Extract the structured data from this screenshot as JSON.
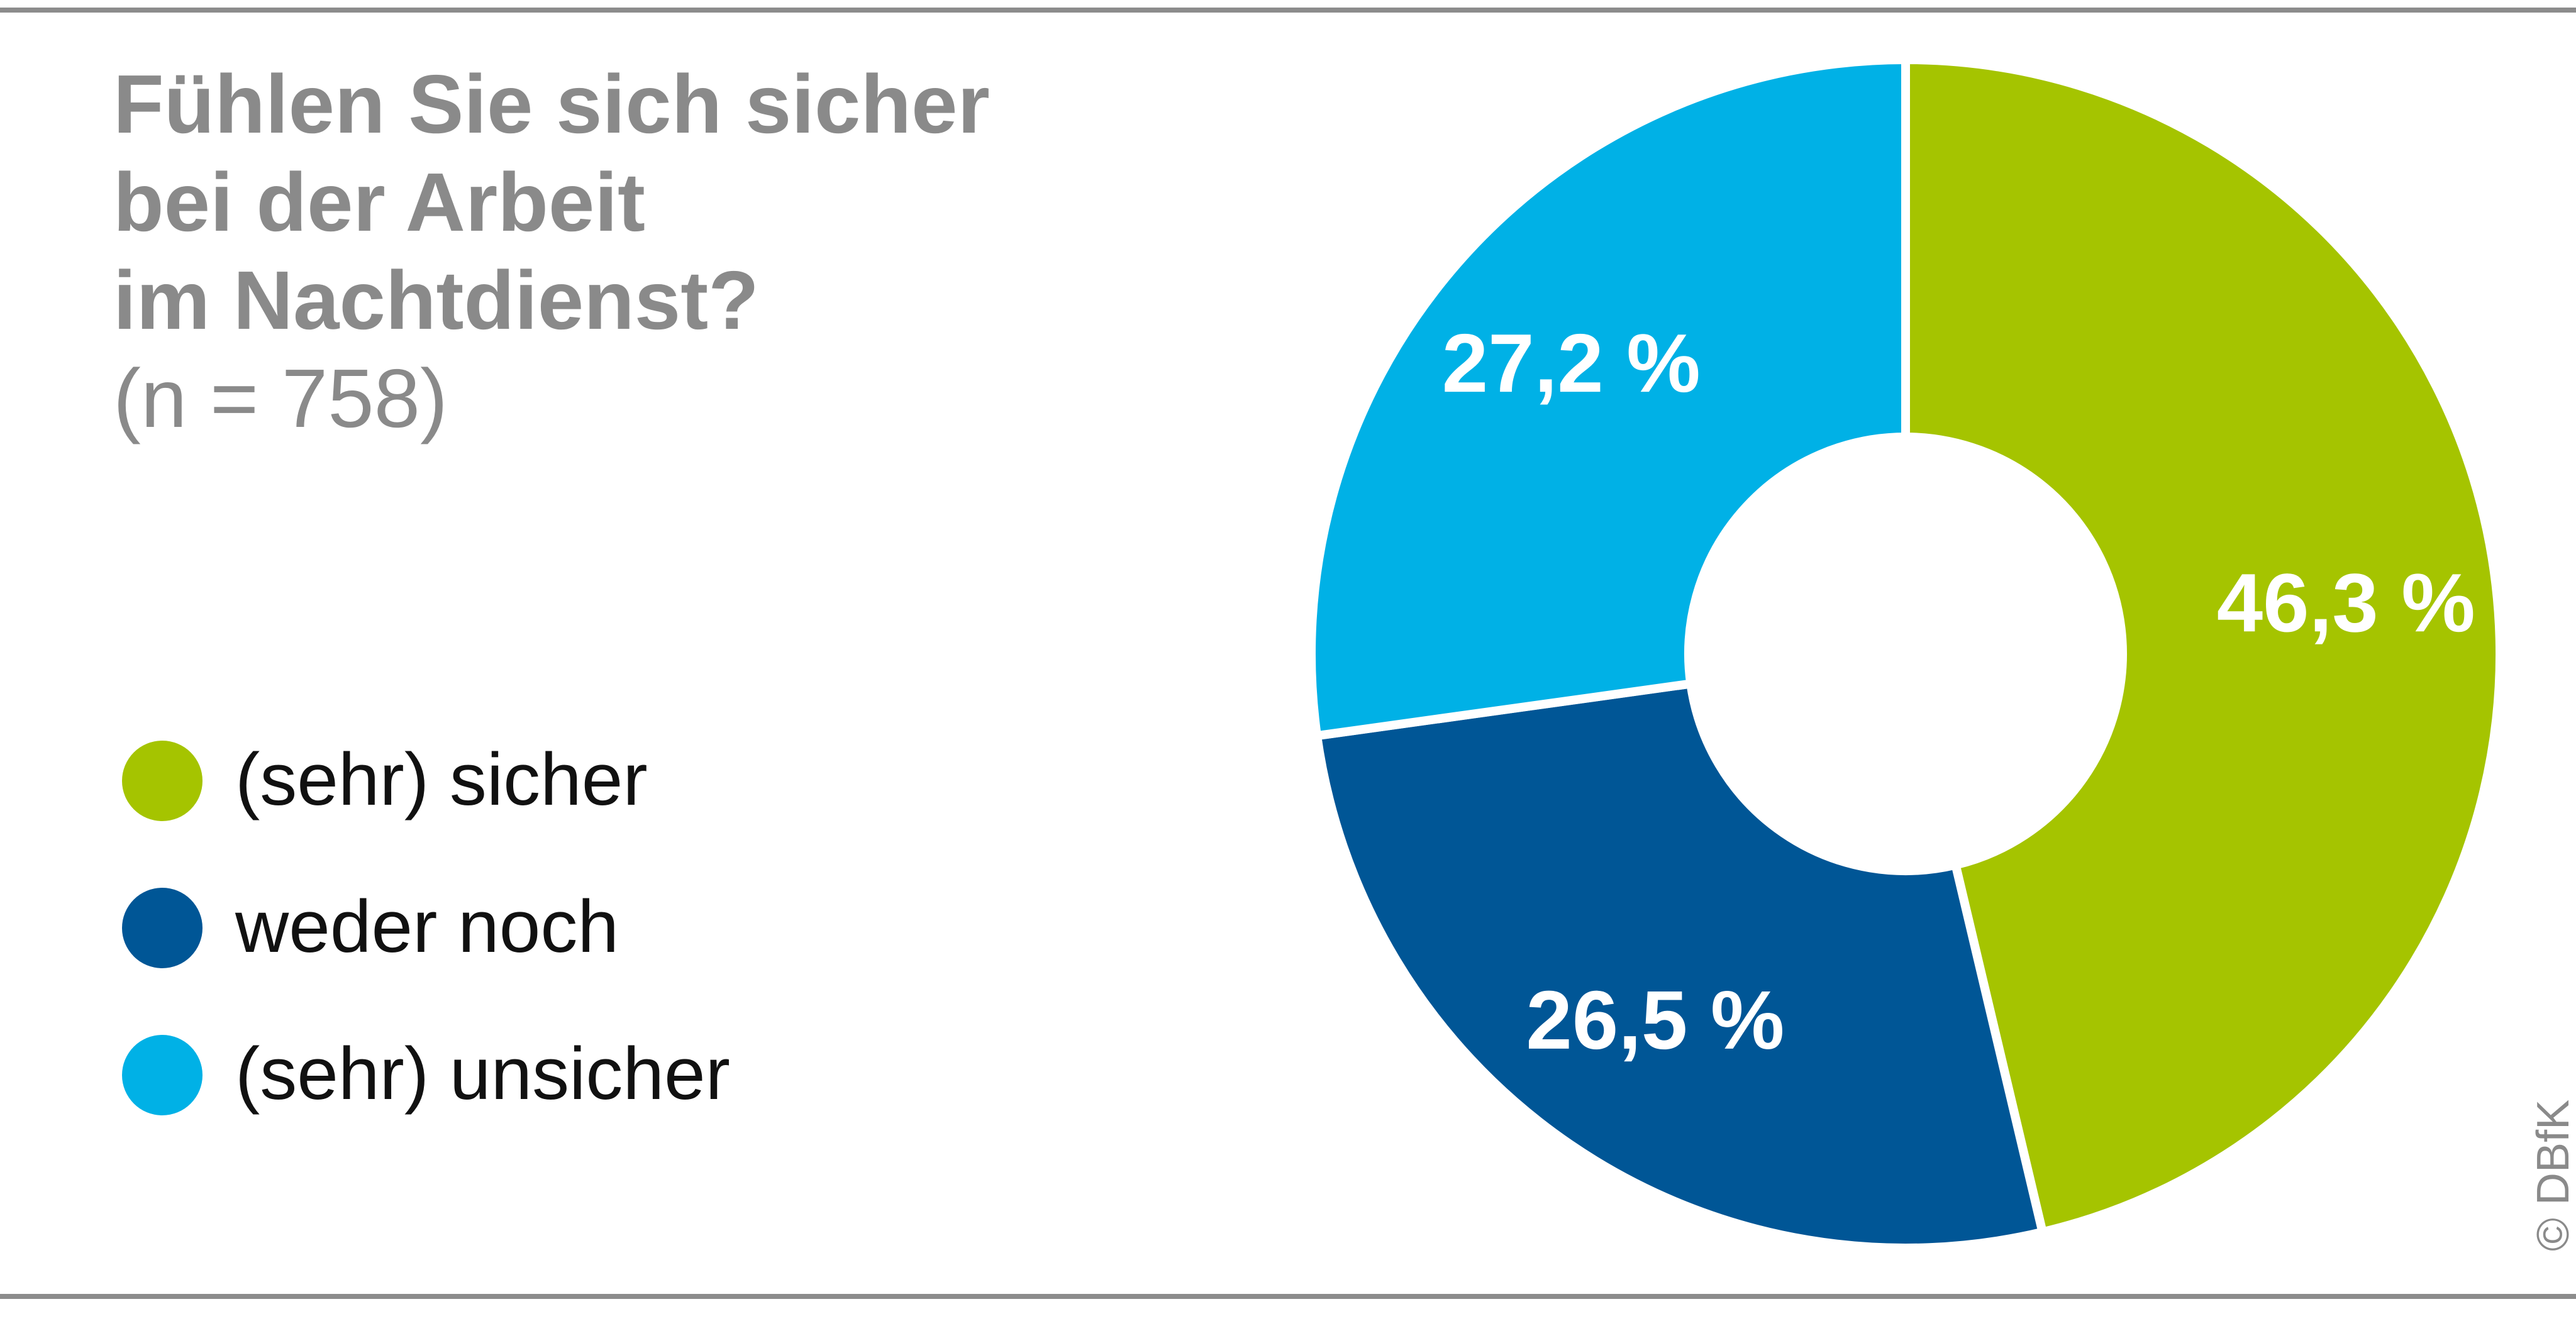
{
  "title_lines": [
    "Fühlen Sie sich sicher",
    "bei der Arbeit",
    "im Nachtdienst?"
  ],
  "subtitle": "(n = 758)",
  "legend": [
    {
      "label": "(sehr) sicher",
      "color": "#a5c400"
    },
    {
      "label": "weder noch",
      "color": "#005696"
    },
    {
      "label": "(sehr) unsicher",
      "color": "#00b1e6"
    }
  ],
  "copyright": "© DBfK",
  "chart_data": {
    "type": "pie",
    "variant": "donut",
    "categories": [
      "(sehr) sicher",
      "weder noch",
      "(sehr) unsicher"
    ],
    "values": [
      46.3,
      26.5,
      27.2
    ],
    "value_labels": [
      "46,3 %",
      "26,5 %",
      "27,2 %"
    ],
    "colors": [
      "#a5c400",
      "#005696",
      "#00b1e6"
    ],
    "title": "Fühlen Sie sich sicher bei der Arbeit im Nachtdienst?",
    "subtitle": "(n = 758)",
    "legend_position": "left"
  }
}
